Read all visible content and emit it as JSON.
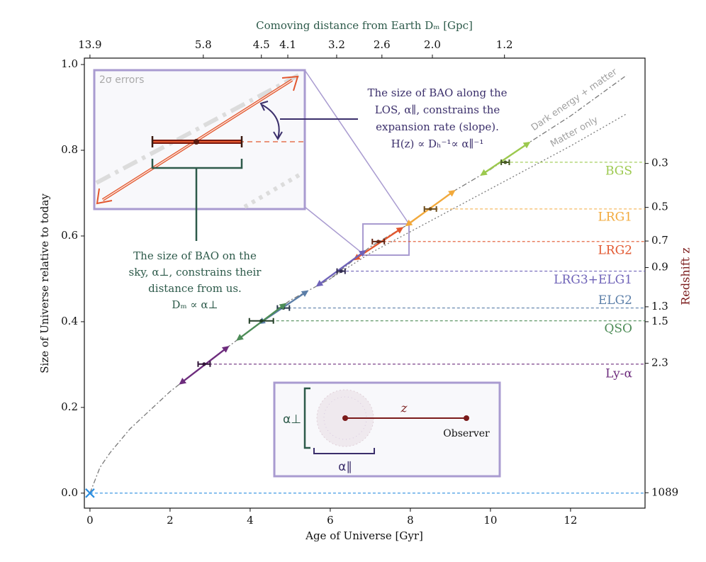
{
  "chart_data": {
    "type": "line",
    "xlabel": "Age of Universe [Gyr]",
    "ylabel": "Size of Universe relative to today",
    "x2label": "Comoving distance from Earth Dₘ [Gpc]",
    "y2label": "Redshift z",
    "xlim": [
      -0.14,
      13.86
    ],
    "ylim": [
      -0.035,
      1.015
    ],
    "xticks": [
      0,
      2,
      4,
      6,
      8,
      10,
      12
    ],
    "yticks": [
      {
        "value": 0,
        "label": "0.0"
      },
      0.2,
      0.4,
      0.6,
      0.8,
      {
        "value": 1,
        "label": "1.0"
      }
    ],
    "x2ticks": [
      13.9,
      5.8,
      4.5,
      4.1,
      3.2,
      2.6,
      {
        "value": 2,
        "label": "2.0"
      },
      1.2
    ],
    "x2tick_ages": [
      0,
      2.83,
      4.28,
      4.94,
      6.16,
      7.29,
      8.55,
      10.35
    ],
    "y2scale": "reciprocal",
    "y2ticks": [
      0.3,
      0.5,
      0.7,
      0.9,
      1.3,
      1.5,
      2.3,
      1089
    ],
    "curves": [
      {
        "name": "Dark energy + matter",
        "color": "#7a7a7a",
        "x": [
          0,
          0.25,
          0.5,
          1,
          2,
          3,
          4,
          5,
          6,
          7,
          8,
          9,
          10,
          11,
          12,
          13.4
        ],
        "y": [
          0,
          0.06,
          0.094,
          0.15,
          0.237,
          0.31,
          0.38,
          0.45,
          0.5,
          0.575,
          0.63,
          0.7,
          0.755,
          0.82,
          0.88,
          0.975
        ]
      },
      {
        "name": "Matter only",
        "color": "#7a7a7a",
        "x": [
          6,
          7,
          8,
          9,
          10,
          11,
          12,
          13.4
        ],
        "y": [
          0.5,
          0.56,
          0.61,
          0.66,
          0.71,
          0.76,
          0.81,
          0.885
        ]
      }
    ],
    "tracers": [
      {
        "name": "BGS",
        "color": "#9cc94e",
        "age": 10.37,
        "a": 0.772,
        "xerr": 0.1
      },
      {
        "name": "LRG1",
        "color": "#f2a93b",
        "age": 8.5,
        "a": 0.663,
        "xerr": 0.15
      },
      {
        "name": "LRG2",
        "color": "#e2572f",
        "age": 7.2,
        "a": 0.587,
        "xerr": 0.15
      },
      {
        "name": "LRG3+ELG1",
        "color": "#6f63b8",
        "age": 6.27,
        "a": 0.518,
        "xerr": 0.1
      },
      {
        "name": "ELG2",
        "color": "#5b7ea8",
        "age": 4.83,
        "a": 0.432,
        "xerr": 0.15
      },
      {
        "name": "QSO",
        "color": "#4d8c57",
        "age": 4.28,
        "a": 0.402,
        "xerr": 0.3
      },
      {
        "name": "Ly-α",
        "color": "#6d2c7d",
        "age": 2.85,
        "a": 0.301,
        "xerr": 0.15
      }
    ],
    "cmb": {
      "age": 0,
      "a": 0,
      "color": "#2a8de0"
    },
    "inset_label": "2σ errors",
    "los_note": [
      "The size of BAO along the",
      "LOS, α∥, constrains the",
      "expansion rate (slope).",
      "H(z) ∝ Dₕ⁻¹∝ α∥⁻¹"
    ],
    "sky_note": [
      "The size of BAO on the",
      "sky, α⊥, constrains their",
      "distance from us.",
      "Dₘ ∝ α⊥"
    ],
    "schematic": {
      "perp": "α⊥",
      "par": "α∥",
      "z": "z",
      "observer": "Observer"
    }
  }
}
